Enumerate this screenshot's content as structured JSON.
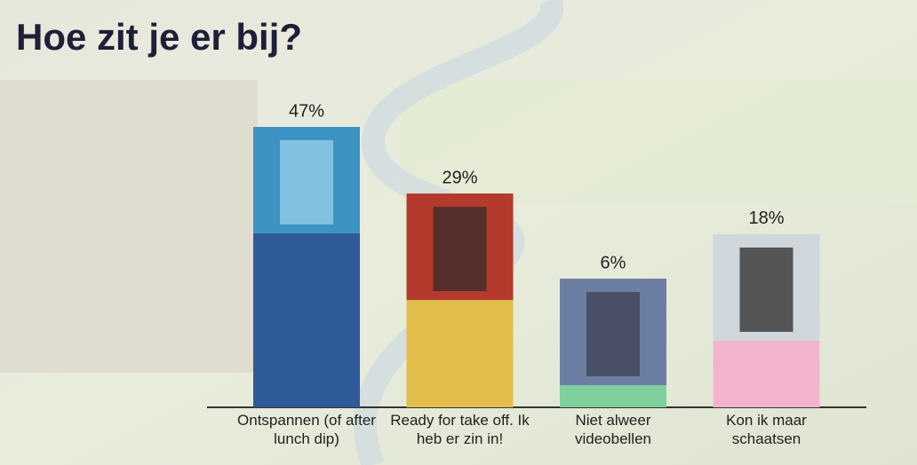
{
  "chart_data": {
    "type": "bar",
    "title": "Hoe zit je er bij?",
    "categories": [
      "Ontspannen (of after lunch dip)",
      "Ready for take off. Ik heb er zin in!",
      "Niet alweer videobellen",
      "Kon ik maar schaatsen"
    ],
    "series": [
      {
        "values": [
          47,
          29,
          6,
          18
        ],
        "value_labels": [
          "47%",
          "29%",
          "6%",
          "18%"
        ],
        "colors": [
          "#2f5a9a",
          "#e2bd4a",
          "#7fcf9c",
          "#f4b3cd"
        ]
      }
    ]
  }
}
